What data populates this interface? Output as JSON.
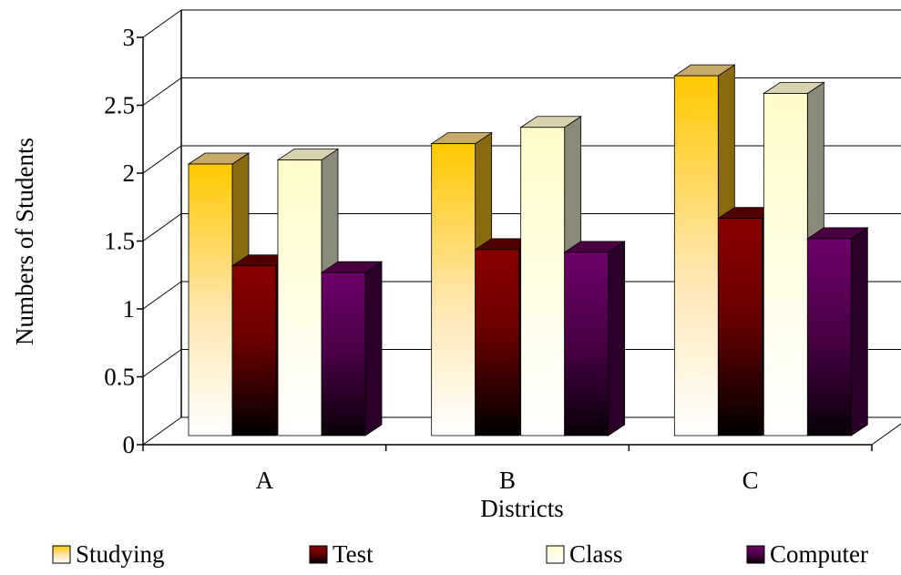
{
  "chart_data": {
    "type": "bar",
    "title": "",
    "xlabel": "Districts",
    "ylabel": "Numbers of Students",
    "categories": [
      "A",
      "B",
      "C"
    ],
    "ylim": [
      0,
      3
    ],
    "yticks": [
      "0",
      "0.5",
      "1",
      "1.5",
      "2",
      "2.5",
      "3"
    ],
    "grid": true,
    "legend_position": "bottom",
    "series": [
      {
        "name": "Studying",
        "values": [
          2.0,
          2.15,
          2.65
        ],
        "color": "#f5b800"
      },
      {
        "name": "Test",
        "values": [
          1.25,
          1.37,
          1.6
        ],
        "color": "#7a0000"
      },
      {
        "name": "Class",
        "values": [
          2.03,
          2.27,
          2.52
        ],
        "color": "#fffbd0"
      },
      {
        "name": "Computer",
        "values": [
          1.2,
          1.35,
          1.45
        ],
        "color": "#6a0060"
      }
    ]
  }
}
